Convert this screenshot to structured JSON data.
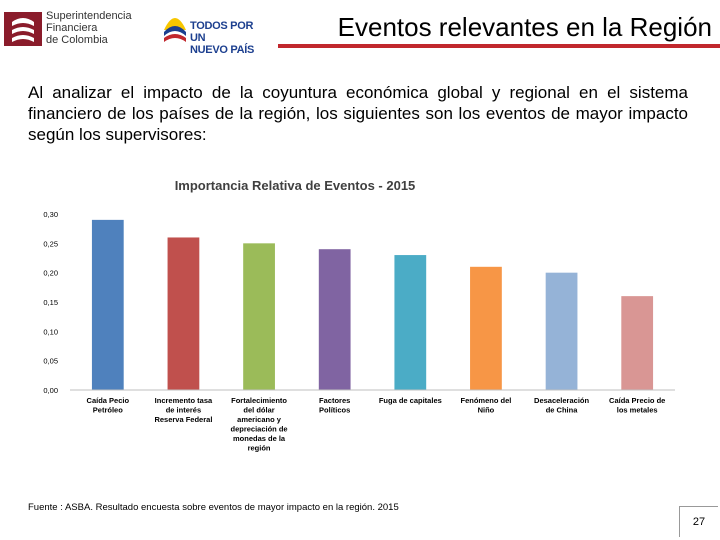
{
  "header": {
    "logo_sfc_lines": [
      "Superintendencia",
      "Financiera",
      "de Colombia"
    ],
    "logo_tpnp_lines": [
      "TODOS POR UN",
      "NUEVO PAÍS"
    ],
    "title": "Eventos relevantes en la Región",
    "accent_color": "#c1272d"
  },
  "intro": "Al analizar el impacto de la coyuntura económica global y regional en el sistema financiero de los países de la región, los siguientes son los eventos de mayor impacto según los supervisores:",
  "chart_data": {
    "type": "bar",
    "title": "Importancia Relativa de Eventos - 2015",
    "xlabel": "",
    "ylabel": "",
    "ylim": [
      0,
      0.3
    ],
    "yticks": [
      "0,00",
      "0,05",
      "0,10",
      "0,15",
      "0,20",
      "0,25",
      "0,30"
    ],
    "grid": false,
    "categories": [
      [
        "Caída Pecio",
        "Petróleo"
      ],
      [
        "Incremento tasa",
        "de interés",
        "Reserva Federal"
      ],
      [
        "Fortalecimiento",
        "del dólar",
        "americano y",
        "depreciación de",
        "monedas de la",
        "región"
      ],
      [
        "Factores",
        "Políticos"
      ],
      [
        "Fuga de capitales"
      ],
      [
        "Fenómeno del",
        "Niño"
      ],
      [
        "Desaceleración",
        "de China"
      ],
      [
        "Caída Precio de",
        "los metales"
      ]
    ],
    "values": [
      0.29,
      0.26,
      0.25,
      0.24,
      0.23,
      0.21,
      0.2,
      0.16
    ],
    "colors": [
      "#4f81bd",
      "#c0504d",
      "#9bbb59",
      "#8064a2",
      "#4bacc6",
      "#f79646",
      "#95b3d7",
      "#d99694"
    ]
  },
  "footer": {
    "source": "Fuente : ASBA. Resultado encuesta sobre eventos de mayor impacto en la región. 2015",
    "page": "27"
  }
}
